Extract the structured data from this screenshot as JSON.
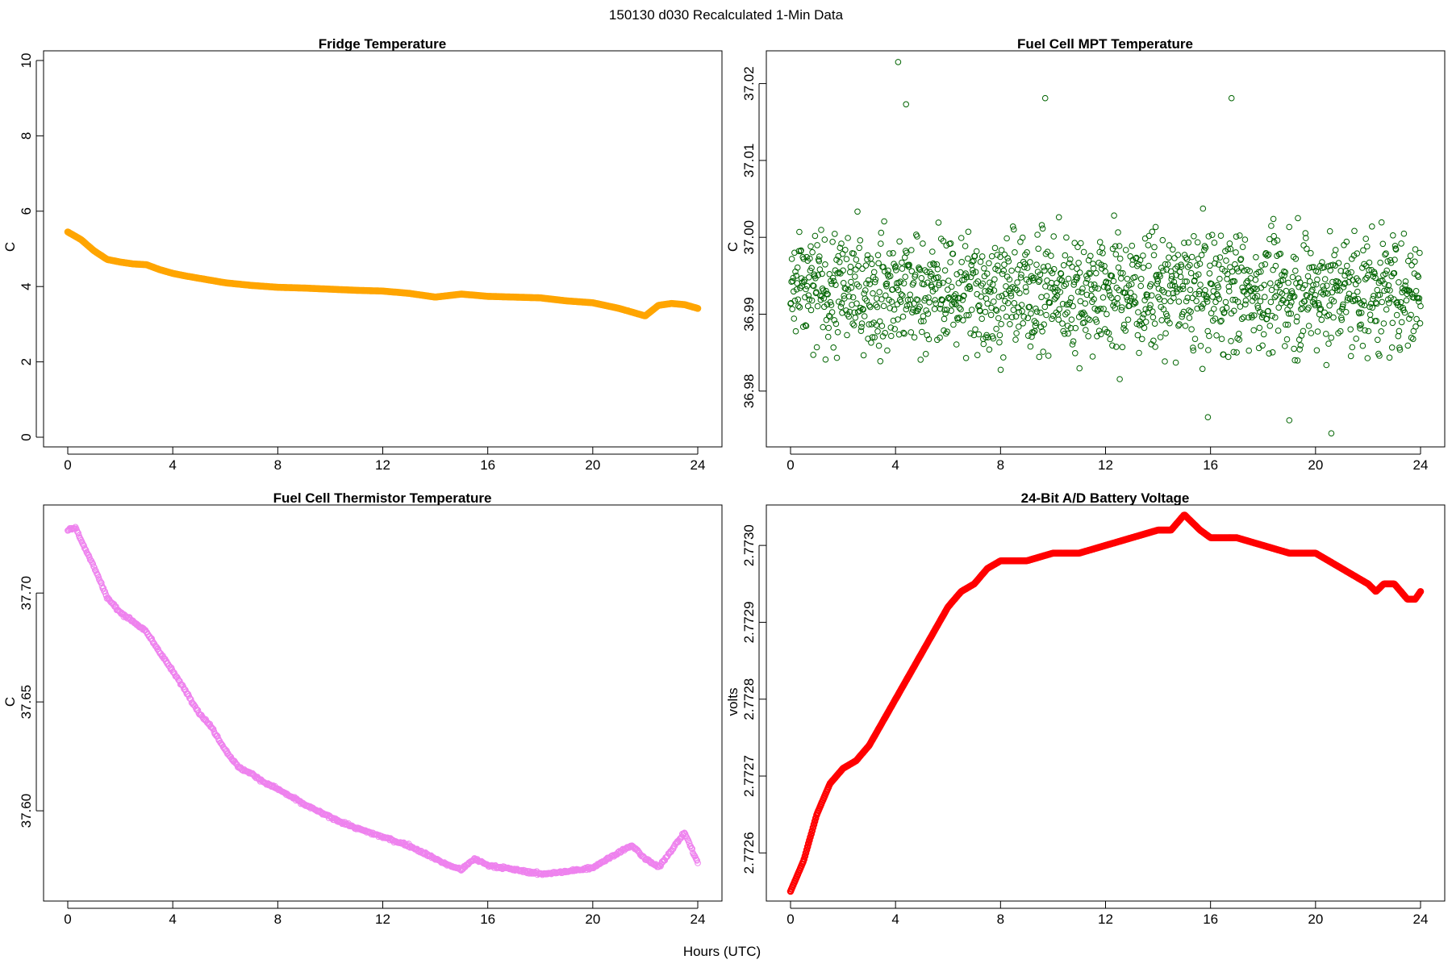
{
  "figure": {
    "title": "150130   d030   Recalculated 1-Min Data",
    "xlabel": "Hours (UTC)"
  },
  "chart_data": [
    {
      "type": "line",
      "title": "Fridge Temperature",
      "ylabel": "C",
      "xlabel": "",
      "xlim": [
        0,
        24
      ],
      "ylim": [
        0,
        10
      ],
      "xticks": [
        "0",
        "4",
        "8",
        "12",
        "16",
        "20",
        "24"
      ],
      "yticks": [
        "0",
        "2",
        "4",
        "6",
        "8",
        "10"
      ],
      "color": "#FFA500",
      "marker": "filled-thick-line",
      "series": [
        {
          "name": "Fridge Temperature",
          "x": [
            0.0,
            0.5,
            1.0,
            1.5,
            2.0,
            2.5,
            3.0,
            3.5,
            4.0,
            4.5,
            5.0,
            6.0,
            7.0,
            8.0,
            9.0,
            10.0,
            11.0,
            12.0,
            13.0,
            14.0,
            15.0,
            16.0,
            17.0,
            18.0,
            19.0,
            20.0,
            21.0,
            22.0,
            22.5,
            23.0,
            23.5,
            24.0
          ],
          "y": [
            5.45,
            5.25,
            4.95,
            4.72,
            4.65,
            4.6,
            4.58,
            4.45,
            4.35,
            4.28,
            4.22,
            4.1,
            4.03,
            3.98,
            3.96,
            3.93,
            3.9,
            3.88,
            3.82,
            3.72,
            3.8,
            3.74,
            3.72,
            3.7,
            3.62,
            3.57,
            3.42,
            3.22,
            3.5,
            3.55,
            3.52,
            3.42
          ]
        }
      ]
    },
    {
      "type": "scatter",
      "title": "Fuel Cell MPT Temperature",
      "ylabel": "C",
      "xlabel": "",
      "xlim": [
        0,
        24
      ],
      "ylim": [
        36.974,
        37.023
      ],
      "xticks": [
        "0",
        "4",
        "8",
        "12",
        "16",
        "20",
        "24"
      ],
      "yticks": [
        "36.98",
        "36.99",
        "37.00",
        "37.01",
        "37.02"
      ],
      "color": "#006400",
      "marker": "open-circle",
      "series": [
        {
          "name": "Fuel Cell MPT Temperature",
          "mean": 36.993,
          "spread": 0.006,
          "n_points": 1440,
          "notable_points": [
            {
              "x": 4.1,
              "y": 37.0228
            },
            {
              "x": 4.4,
              "y": 37.0173
            },
            {
              "x": 9.7,
              "y": 37.0181
            },
            {
              "x": 16.8,
              "y": 37.0181
            },
            {
              "x": 20.6,
              "y": 36.9745
            },
            {
              "x": 19.0,
              "y": 36.9762
            },
            {
              "x": 15.9,
              "y": 36.9766
            }
          ]
        }
      ]
    },
    {
      "type": "scatter",
      "title": "Fuel Cell Thermistor Temperature",
      "ylabel": "C",
      "xlabel": "",
      "xlim": [
        0,
        24
      ],
      "ylim": [
        37.563,
        37.736
      ],
      "xticks": [
        "0",
        "4",
        "8",
        "12",
        "16",
        "20",
        "24"
      ],
      "yticks": [
        "37.60",
        "37.65",
        "37.70"
      ],
      "color": "#EE82EE",
      "marker": "open-circle",
      "series": [
        {
          "name": "Fuel Cell Thermistor Temperature",
          "x": [
            0.0,
            0.3,
            0.6,
            1.0,
            1.5,
            2.0,
            2.5,
            3.0,
            3.5,
            4.0,
            4.5,
            5.0,
            5.5,
            6.0,
            6.5,
            7.0,
            7.5,
            8.0,
            9.0,
            10.0,
            11.0,
            12.0,
            13.0,
            14.0,
            14.5,
            15.0,
            15.5,
            16.0,
            17.0,
            18.0,
            19.0,
            20.0,
            21.0,
            21.5,
            22.0,
            22.5,
            23.0,
            23.5,
            24.0
          ],
          "y": [
            37.729,
            37.73,
            37.722,
            37.712,
            37.698,
            37.691,
            37.687,
            37.682,
            37.673,
            37.664,
            37.655,
            37.645,
            37.638,
            37.628,
            37.62,
            37.617,
            37.613,
            37.61,
            37.603,
            37.597,
            37.592,
            37.588,
            37.584,
            37.578,
            37.575,
            37.573,
            37.578,
            37.575,
            37.573,
            37.571,
            37.572,
            37.574,
            37.581,
            37.584,
            37.578,
            37.574,
            37.582,
            37.59,
            37.576
          ]
        }
      ]
    },
    {
      "type": "line",
      "title": "24-Bit A/D Battery Voltage",
      "ylabel": "volts",
      "xlabel": "",
      "xlim": [
        0,
        24
      ],
      "ylim": [
        2.77255,
        2.77304
      ],
      "xticks": [
        "0",
        "4",
        "8",
        "12",
        "16",
        "20",
        "24"
      ],
      "yticks": [
        "2.7726",
        "2.7727",
        "2.7728",
        "2.7729",
        "2.7730"
      ],
      "color": "#FF0000",
      "marker": "filled-thick-line",
      "series": [
        {
          "name": "24-Bit A/D Battery Voltage",
          "x": [
            0.0,
            0.5,
            1.0,
            1.5,
            2.0,
            2.5,
            3.0,
            3.5,
            4.0,
            4.5,
            5.0,
            5.5,
            6.0,
            6.5,
            7.0,
            7.5,
            8.0,
            9.0,
            10.0,
            11.0,
            12.0,
            13.0,
            14.0,
            14.5,
            15.0,
            15.3,
            15.6,
            16.0,
            17.0,
            18.0,
            19.0,
            20.0,
            21.0,
            21.5,
            22.0,
            22.3,
            22.6,
            23.0,
            23.5,
            23.8,
            24.0
          ],
          "y": [
            2.77255,
            2.77259,
            2.77265,
            2.77269,
            2.77271,
            2.77272,
            2.77274,
            2.77277,
            2.7728,
            2.77283,
            2.77286,
            2.77289,
            2.77292,
            2.77294,
            2.77295,
            2.77297,
            2.77298,
            2.77298,
            2.77299,
            2.77299,
            2.773,
            2.77301,
            2.77302,
            2.77302,
            2.77304,
            2.77303,
            2.77302,
            2.77301,
            2.77301,
            2.773,
            2.77299,
            2.77299,
            2.77297,
            2.77296,
            2.77295,
            2.77294,
            2.77295,
            2.77295,
            2.77293,
            2.77293,
            2.77294
          ]
        }
      ]
    }
  ]
}
